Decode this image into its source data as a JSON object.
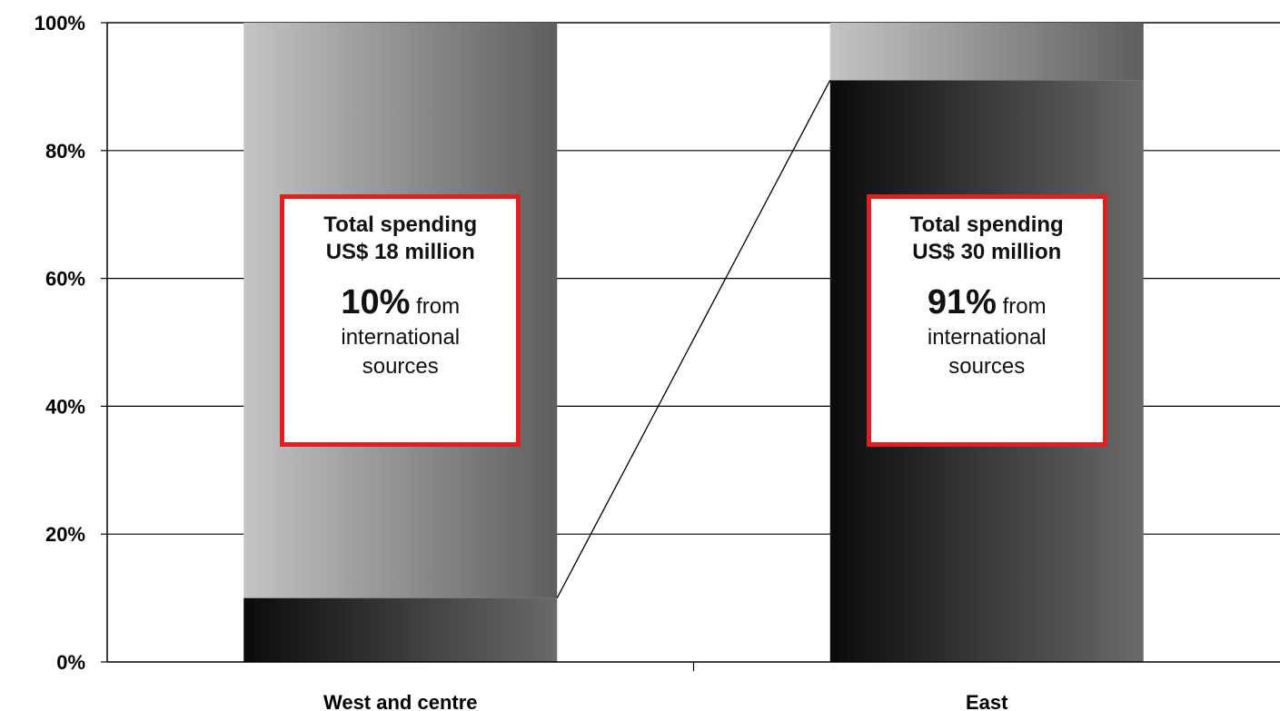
{
  "chart_data": {
    "type": "bar",
    "stacked": true,
    "percent_stacked": true,
    "categories": [
      "West and centre",
      "East"
    ],
    "series": [
      {
        "values": [
          10,
          91
        ]
      },
      {
        "values": [
          90,
          9
        ]
      }
    ],
    "yticks": [
      "0%",
      "20%",
      "40%",
      "60%",
      "80%",
      "100%"
    ],
    "ylim": [
      0,
      100
    ],
    "grid": true,
    "series_lines": true,
    "annotations": [
      {
        "category": "West and centre",
        "line1": "Total spending",
        "line2": "US$ 18 million",
        "share": "10%",
        "share_suffix": " from",
        "line4": "international",
        "line5": "sources"
      },
      {
        "category": "East",
        "line1": "Total  spending",
        "line2": "US$ 30 million",
        "share": "91%",
        "share_suffix": " from",
        "line4": "international",
        "line5": "sources"
      }
    ]
  },
  "colors": {
    "callout_border": "#e02020",
    "international_gradient_start": "#0a0a0a",
    "international_gradient_end": "#6a6a6a",
    "other_gradient_start": "#c4c4c4",
    "other_gradient_end": "#5e5e5e"
  }
}
